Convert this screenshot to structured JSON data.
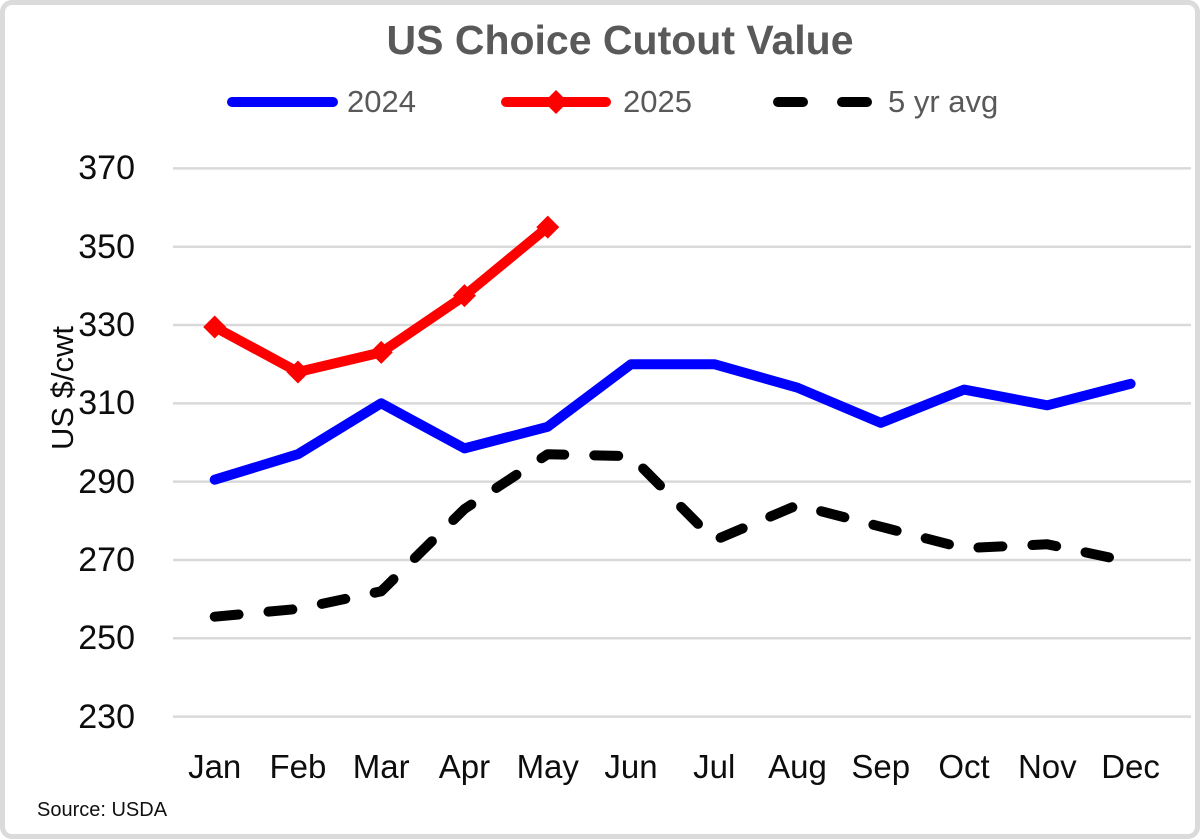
{
  "source": "Source: USDA",
  "chart_data": {
    "type": "line",
    "title": "US Choice Cutout Value",
    "xlabel": "",
    "ylabel": "US $/cwt",
    "categories": [
      "Jan",
      "Feb",
      "Mar",
      "Apr",
      "May",
      "Jun",
      "Jul",
      "Aug",
      "Sep",
      "Oct",
      "Nov",
      "Dec"
    ],
    "y_ticks": [
      370,
      350,
      330,
      310,
      290,
      270,
      250,
      230
    ],
    "ylim": [
      230,
      370
    ],
    "grid": true,
    "legend_position": "top",
    "series": [
      {
        "name": "2024",
        "color": "#0000FF",
        "style": "solid",
        "marker": "none",
        "values": [
          290.5,
          297,
          310,
          298.5,
          304,
          320,
          320,
          314,
          305,
          313.5,
          309.5,
          315
        ]
      },
      {
        "name": "2025",
        "color": "#FF0000",
        "style": "solid",
        "marker": "diamond",
        "values": [
          329.5,
          318,
          323,
          337.5,
          355,
          null,
          null,
          null,
          null,
          null,
          null,
          null
        ]
      },
      {
        "name": "5 yr avg",
        "color": "#000000",
        "style": "dashed",
        "marker": "none",
        "values": [
          255.5,
          257.5,
          262,
          283,
          297,
          296.5,
          275,
          284,
          278.5,
          273,
          274,
          269.5
        ]
      }
    ]
  }
}
